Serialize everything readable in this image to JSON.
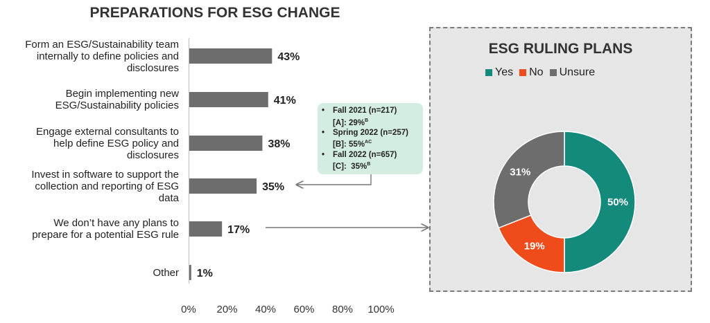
{
  "bar_chart_title": "PREPARATIONS FOR ESG CHANGE",
  "donut_chart_title": "ESG RULING PLANS",
  "chart_data": [
    {
      "type": "bar",
      "orientation": "horizontal",
      "title": "PREPARATIONS FOR ESG CHANGE",
      "categories": [
        "Form an ESG/Sustainability team internally to define policies and disclosures",
        "Begin implementing new ESG/Sustainability policies",
        "Engage external consultants to help define ESG policy and disclosures",
        "Invest in software to support the collection and reporting of ESG data",
        "We don’t have any plans to prepare for a potential ESG rule",
        "Other"
      ],
      "category_lines": [
        [
          "Form an ESG/Sustainability team",
          "internally to define policies and",
          "disclosures"
        ],
        [
          "Begin implementing new",
          "ESG/Sustainability policies"
        ],
        [
          "Engage external consultants to",
          "help define ESG policy and",
          "disclosures"
        ],
        [
          "Invest in software to support the",
          "collection and reporting of ESG",
          "data"
        ],
        [
          "We don’t have any plans to",
          "prepare for a potential ESG rule"
        ],
        [
          "Other"
        ]
      ],
      "values": [
        43,
        41,
        38,
        35,
        17,
        1
      ],
      "value_labels": [
        "43%",
        "41%",
        "38%",
        "35%",
        "17%",
        "1%"
      ],
      "xlim": [
        0,
        100
      ],
      "x_ticks": [
        0,
        20,
        40,
        60,
        80,
        100
      ],
      "x_tick_labels": [
        "0%",
        "20%",
        "40%",
        "60%",
        "80%",
        "100%"
      ],
      "grid": false,
      "bar_color": "#6d6d6d"
    },
    {
      "type": "pie",
      "variant": "donut",
      "title": "ESG RULING PLANS",
      "categories": [
        "Yes",
        "No",
        "Unsure"
      ],
      "values": [
        50,
        19,
        31
      ],
      "value_labels": [
        "50%",
        "19%",
        "31%"
      ],
      "colors": [
        "#138a7c",
        "#f04c1b",
        "#6d6d6d"
      ],
      "legend_position": "top"
    }
  ],
  "callout": {
    "waves": [
      {
        "bullet": "•",
        "heading": "Fall 2021 (n=217)",
        "group": "[A]: 29%",
        "sig": "B"
      },
      {
        "bullet": "•",
        "heading": "Spring 2022 (n=257)",
        "group": "[B]: 55%",
        "sig": "AC"
      },
      {
        "bullet": "•",
        "heading": "Fall 2022 (n=657)",
        "group": "[C]:  35%",
        "sig": "B"
      }
    ],
    "background": "#d3ede3"
  },
  "colors": {
    "panel_background": "#e6e6e6",
    "connector": "#777777"
  }
}
